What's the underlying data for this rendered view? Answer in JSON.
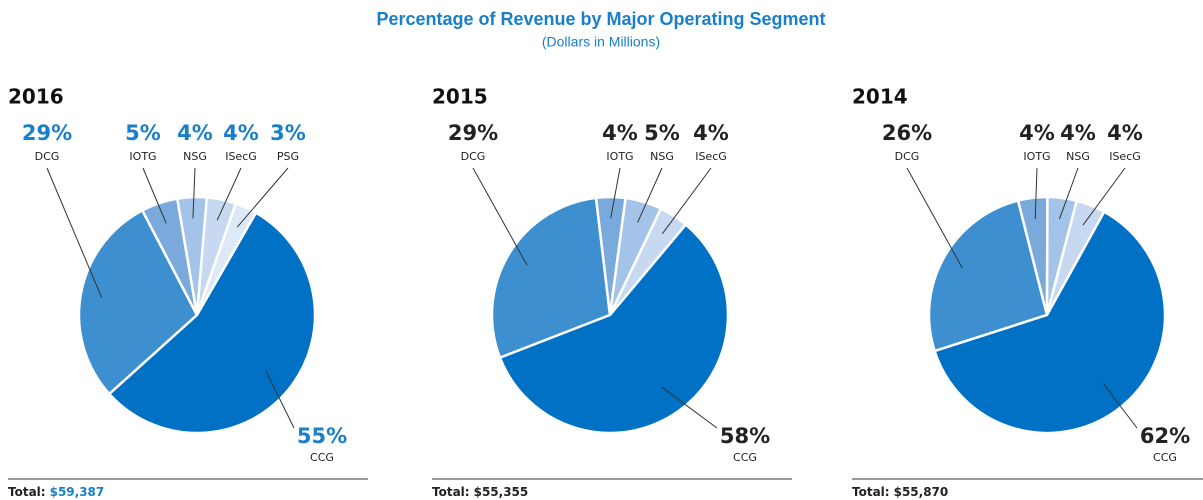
{
  "title": "Percentage of Revenue by Major Operating Segment",
  "subtitle": "(Dollars in Millions)",
  "chart_data": [
    {
      "type": "pie",
      "title": "2016",
      "categories": [
        "DCG",
        "IOTG",
        "NSG",
        "ISecG",
        "PSG",
        "CCG"
      ],
      "values": [
        29,
        5,
        4,
        4,
        3,
        55
      ],
      "value_labels": [
        "29%",
        "5%",
        "4%",
        "4%",
        "3%",
        "55%"
      ],
      "colors": [
        "#3d8fcf",
        "#7aa9dc",
        "#a3c3e8",
        "#c6d9f1",
        "#dde9f6",
        "#0071c5"
      ],
      "label_color": "#1a7fc9",
      "total_label": "Total:",
      "total": "$59,387",
      "total_color": "#1a7fc9"
    },
    {
      "type": "pie",
      "title": "2015",
      "categories": [
        "DCG",
        "IOTG",
        "NSG",
        "ISecG",
        "CCG"
      ],
      "values": [
        29,
        4,
        5,
        4,
        58
      ],
      "value_labels": [
        "29%",
        "4%",
        "5%",
        "4%",
        "58%"
      ],
      "colors": [
        "#3d8fcf",
        "#7aa9dc",
        "#a3c3e8",
        "#c6d9f1",
        "#0071c5"
      ],
      "label_color": "#222222",
      "total_label": "Total:",
      "total": "$55,355",
      "total_color": "#222222"
    },
    {
      "type": "pie",
      "title": "2014",
      "categories": [
        "DCG",
        "IOTG",
        "NSG",
        "ISecG",
        "CCG"
      ],
      "values": [
        26,
        4,
        4,
        4,
        62
      ],
      "value_labels": [
        "26%",
        "4%",
        "4%",
        "4%",
        "62%"
      ],
      "colors": [
        "#3d8fcf",
        "#7aa9dc",
        "#a3c3e8",
        "#c6d9f1",
        "#0071c5"
      ],
      "label_color": "#222222",
      "total_label": "Total:",
      "total": "$55,870",
      "total_color": "#222222"
    }
  ]
}
